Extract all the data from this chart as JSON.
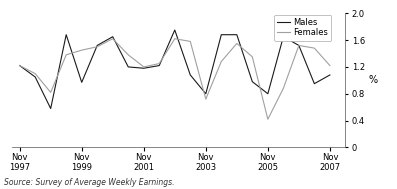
{
  "source": "Source: Survey of Average Weekly Earnings.",
  "ylabel": "%",
  "ylim": [
    0,
    2.0
  ],
  "yticks": [
    0,
    0.4,
    0.8,
    1.2,
    1.6,
    2.0
  ],
  "ytick_labels": [
    "0",
    "0.4",
    "0.8",
    "1.2",
    "1.6",
    "2.0"
  ],
  "xtick_labels": [
    "Nov\n1997",
    "Nov\n1999",
    "Nov\n2001",
    "Nov\n2003",
    "Nov\n2005",
    "Nov\n2007"
  ],
  "xtick_positions": [
    0,
    4,
    8,
    12,
    16,
    20
  ],
  "males_x": [
    0,
    1,
    2,
    3,
    4,
    5,
    6,
    7,
    8,
    9,
    10,
    11,
    12,
    13,
    14,
    15,
    16,
    17,
    18,
    19,
    20
  ],
  "males_y": [
    1.22,
    1.05,
    0.58,
    1.68,
    0.97,
    1.52,
    1.65,
    1.2,
    1.18,
    1.22,
    1.75,
    1.08,
    0.8,
    1.68,
    1.68,
    0.98,
    0.8,
    1.65,
    1.52,
    0.95,
    1.08
  ],
  "females_x": [
    0,
    1,
    2,
    3,
    4,
    5,
    6,
    7,
    8,
    9,
    10,
    11,
    12,
    13,
    14,
    15,
    16,
    17,
    18,
    19,
    20
  ],
  "females_y": [
    1.22,
    1.1,
    0.82,
    1.38,
    1.45,
    1.5,
    1.62,
    1.38,
    1.2,
    1.25,
    1.62,
    1.58,
    0.72,
    1.28,
    1.55,
    1.35,
    0.42,
    0.88,
    1.52,
    1.48,
    1.22
  ],
  "males_color": "#1a1a1a",
  "females_color": "#a0a0a0",
  "legend_labels": [
    "Males",
    "Females"
  ],
  "background_color": "#ffffff",
  "xlim": [
    -0.5,
    21.0
  ]
}
